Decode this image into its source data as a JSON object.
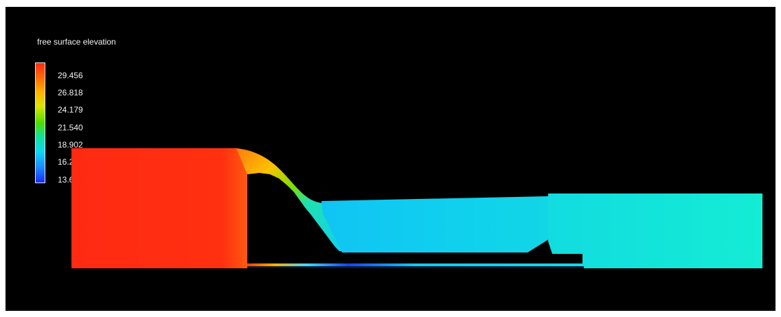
{
  "legend": {
    "title": "free surface elevation",
    "ticks": [
      "29.456",
      "26.818",
      "24.179",
      "21.540",
      "18.902",
      "16.263",
      "13.624"
    ],
    "min": 13.624,
    "max": 29.456
  },
  "colors": {
    "background": "#000000",
    "high": "#ff2a12",
    "mid": "#4fdc00",
    "low": "#1a2cff",
    "downstream": "#12e4d0",
    "channel": "#16d2ee"
  }
}
